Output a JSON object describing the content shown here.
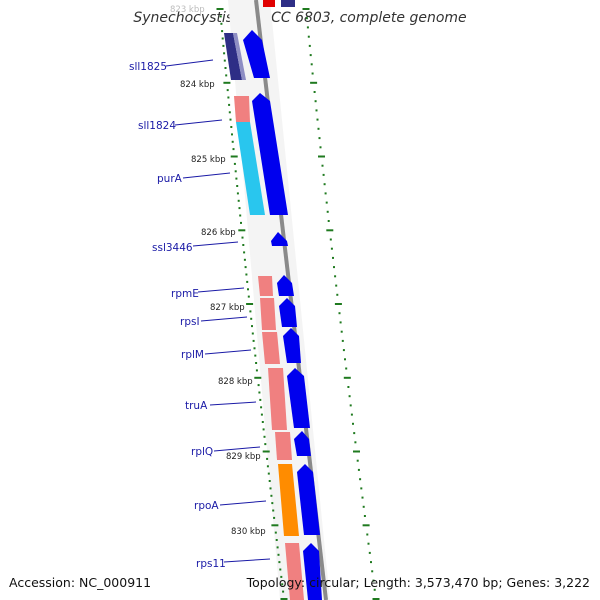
{
  "header": {
    "title": "Synechocystis sp. PCC 6803, complete genome"
  },
  "footer": {
    "accession": "Accession: NC_000911",
    "summary": "Topology: circular; Length: 3,573,470 bp; Genes: 3,222"
  },
  "map": {
    "kbp_ticks": [
      {
        "label": "823 kbp",
        "faint": true
      },
      {
        "label": "824 kbp"
      },
      {
        "label": "825 kbp"
      },
      {
        "label": "826 kbp"
      },
      {
        "label": "827 kbp"
      },
      {
        "label": "828 kbp"
      },
      {
        "label": "829 kbp"
      },
      {
        "label": "830 kbp"
      }
    ],
    "genes": [
      {
        "name": "sll1825"
      },
      {
        "name": "sll1824"
      },
      {
        "name": "purA"
      },
      {
        "name": "ssl3446"
      },
      {
        "name": "rpmE"
      },
      {
        "name": "rpsI"
      },
      {
        "name": "rplM"
      },
      {
        "name": "truA"
      },
      {
        "name": "rplQ"
      },
      {
        "name": "rpoA"
      },
      {
        "name": "rps11"
      }
    ],
    "colors": {
      "strand_blue": "#0000ee",
      "ribosomal_pink": "#f08080",
      "purine_cyan": "#29c6ee",
      "rpoA_orange": "#ff8c00",
      "navy": "#2e2e86",
      "backbone_gray": "#888888",
      "tick_green": "#1f7a1f",
      "label_blue": "#1a1aa6"
    }
  }
}
